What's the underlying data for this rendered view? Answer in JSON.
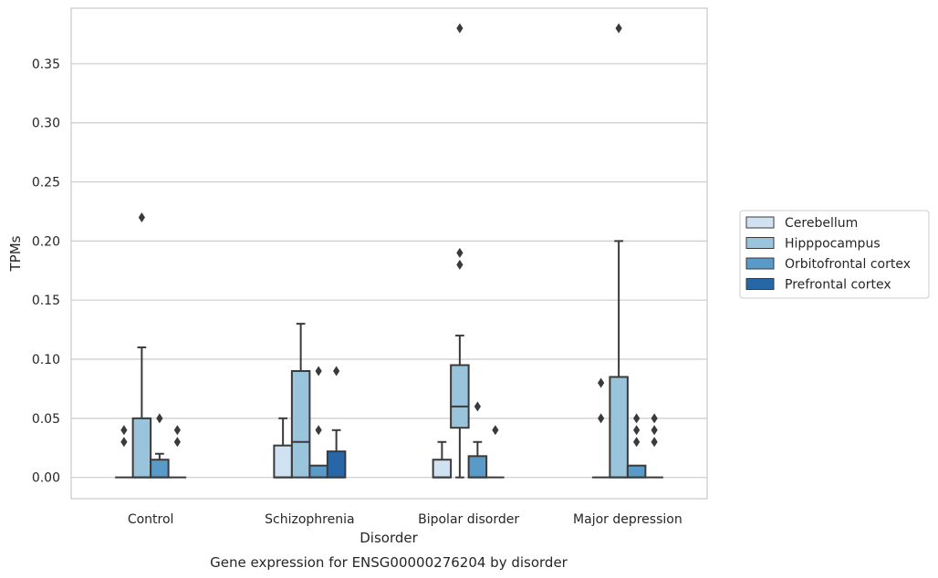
{
  "chart_data": {
    "type": "box",
    "caption": "Gene expression for ENSG00000276204 by disorder",
    "xlabel": "Disorder",
    "ylabel": "TPMs",
    "ylim": [
      -0.018,
      0.397
    ],
    "yticks": [
      "0.00",
      "0.05",
      "0.10",
      "0.15",
      "0.20",
      "0.25",
      "0.30",
      "0.35"
    ],
    "ytick_values": [
      0,
      0.05,
      0.1,
      0.15,
      0.2,
      0.25,
      0.3,
      0.35
    ],
    "grid": "horizontal",
    "legend_position": "right",
    "categories": [
      "Control",
      "Schizophrenia",
      "Bipolar disorder",
      "Major depression"
    ],
    "series": [
      {
        "name": "Cerebellum",
        "color": "#d0e1f2",
        "boxes": [
          {
            "q1": 0,
            "median": 0,
            "q3": 0,
            "whislo": 0,
            "whishi": 0,
            "fliers": [
              0.03,
              0.04
            ]
          },
          {
            "q1": 0,
            "median": 0,
            "q3": 0.027,
            "whislo": 0,
            "whishi": 0.05,
            "fliers": []
          },
          {
            "q1": 0,
            "median": 0,
            "q3": 0.015,
            "whislo": 0,
            "whishi": 0.03,
            "fliers": []
          },
          {
            "q1": 0,
            "median": 0,
            "q3": 0,
            "whislo": 0,
            "whishi": 0,
            "fliers": [
              0.05,
              0.08
            ]
          }
        ]
      },
      {
        "name": "Hipppocampus",
        "color": "#9ac3dc",
        "boxes": [
          {
            "q1": 0,
            "median": 0,
            "q3": 0.05,
            "whislo": 0,
            "whishi": 0.11,
            "fliers": [
              0.22
            ]
          },
          {
            "q1": 0,
            "median": 0.03,
            "q3": 0.09,
            "whislo": 0,
            "whishi": 0.13,
            "fliers": []
          },
          {
            "q1": 0.042,
            "median": 0.06,
            "q3": 0.095,
            "whislo": 0,
            "whishi": 0.12,
            "fliers": [
              0.18,
              0.19,
              0.38
            ]
          },
          {
            "q1": 0,
            "median": 0,
            "q3": 0.085,
            "whislo": 0,
            "whishi": 0.2,
            "fliers": [
              0.38
            ]
          }
        ]
      },
      {
        "name": "Orbitofrontal cortex",
        "color": "#5a9ac9",
        "boxes": [
          {
            "q1": 0,
            "median": 0,
            "q3": 0.015,
            "whislo": 0,
            "whishi": 0.02,
            "fliers": [
              0.05
            ]
          },
          {
            "q1": 0,
            "median": 0,
            "q3": 0.01,
            "whislo": 0,
            "whishi": 0.01,
            "fliers": [
              0.04,
              0.09
            ]
          },
          {
            "q1": 0,
            "median": 0,
            "q3": 0.018,
            "whislo": 0,
            "whishi": 0.03,
            "fliers": [
              0.06
            ]
          },
          {
            "q1": 0,
            "median": 0,
            "q3": 0.01,
            "whislo": 0,
            "whishi": 0.01,
            "fliers": [
              0.03,
              0.04,
              0.05
            ]
          }
        ]
      },
      {
        "name": "Prefrontal cortex",
        "color": "#2767a8",
        "boxes": [
          {
            "q1": 0,
            "median": 0,
            "q3": 0,
            "whislo": 0,
            "whishi": 0,
            "fliers": [
              0.03,
              0.04
            ]
          },
          {
            "q1": 0,
            "median": 0,
            "q3": 0.022,
            "whislo": 0,
            "whishi": 0.04,
            "fliers": [
              0.09
            ]
          },
          {
            "q1": 0,
            "median": 0,
            "q3": 0,
            "whislo": 0,
            "whishi": 0,
            "fliers": [
              0.04
            ]
          },
          {
            "q1": 0,
            "median": 0,
            "q3": 0,
            "whislo": 0,
            "whishi": 0,
            "fliers": [
              0.03,
              0.04,
              0.05
            ]
          }
        ]
      }
    ],
    "colors": {
      "line": "#3a3a3a",
      "grid": "#cccccc",
      "frame": "#cccccc",
      "text": "#262626"
    }
  }
}
